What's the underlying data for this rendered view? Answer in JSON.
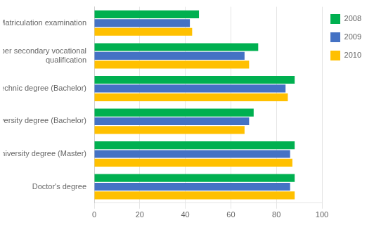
{
  "chart_data": {
    "type": "bar",
    "orientation": "horizontal",
    "categories": [
      "Matriculation examination",
      "Upper secondary vocational\nqualification",
      "Polytechnic degree (Bachelor)",
      "Lower university degree (Bachelor)",
      "Higher university degree (Master)",
      "Doctor's degree"
    ],
    "series": [
      {
        "name": "2008",
        "color": "#00B050",
        "values": [
          46,
          72,
          88,
          70,
          88,
          88
        ]
      },
      {
        "name": "2009",
        "color": "#4472C4",
        "values": [
          42,
          66,
          84,
          68,
          86,
          86
        ]
      },
      {
        "name": "2010",
        "color": "#FFC000",
        "values": [
          43,
          68,
          85,
          66,
          87,
          88
        ]
      }
    ],
    "xlim": [
      0,
      100
    ],
    "xticks": [
      0,
      20,
      40,
      60,
      80,
      100
    ],
    "grid": true,
    "legend": "right"
  }
}
